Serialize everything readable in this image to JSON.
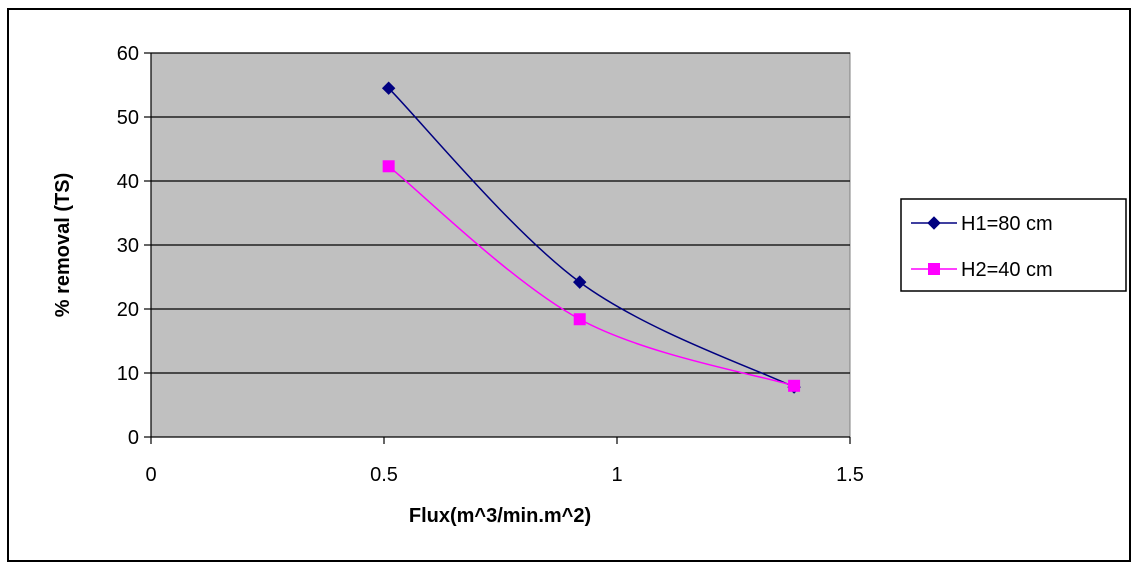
{
  "chart_data": {
    "type": "line",
    "title": "",
    "xlabel": "Flux(m^3/min.m^2)",
    "ylabel": "% removal (TS)",
    "xlim": [
      0,
      1.5
    ],
    "ylim": [
      0,
      60
    ],
    "xticks": [
      0,
      0.5,
      1,
      1.5
    ],
    "xtick_labels": [
      "0",
      "0.5",
      "1",
      "1.5"
    ],
    "yticks": [
      0,
      10,
      20,
      30,
      40,
      50,
      60
    ],
    "ytick_labels": [
      "0",
      "10",
      "20",
      "30",
      "40",
      "50",
      "60"
    ],
    "grid": "horizontal",
    "plot_background": "#c0c0c0",
    "legend_position": "right",
    "smoothed": true,
    "series": [
      {
        "name": "H1=80 cm",
        "color": "#000080",
        "marker": "diamond",
        "x": [
          0.51,
          0.92,
          1.38
        ],
        "y": [
          54.5,
          24.2,
          7.8
        ]
      },
      {
        "name": "H2=40 cm",
        "color": "#ff00ff",
        "marker": "square",
        "x": [
          0.51,
          0.92,
          1.38
        ],
        "y": [
          42.3,
          18.4,
          8.0
        ]
      }
    ]
  }
}
